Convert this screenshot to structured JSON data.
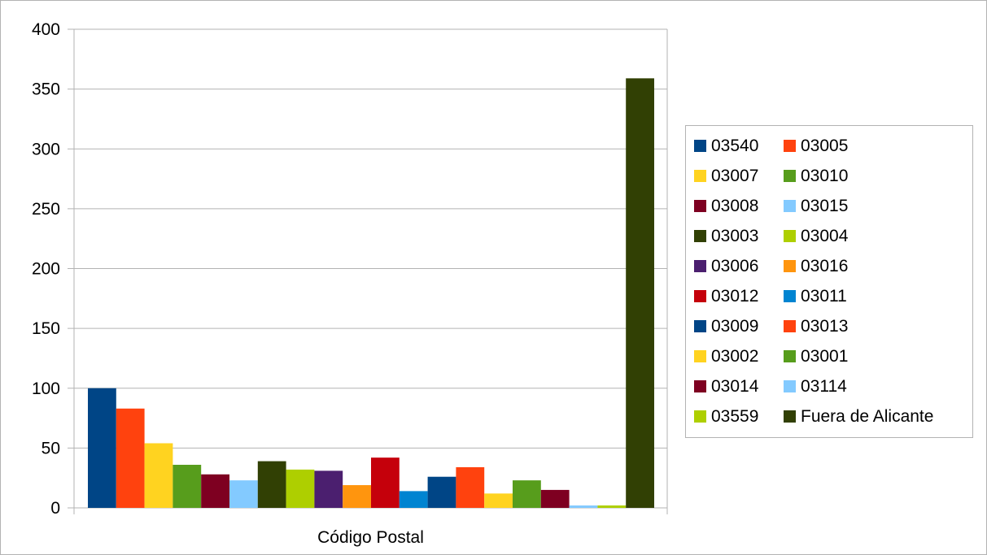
{
  "chart_data": {
    "type": "bar",
    "xlabel": "Código Postal",
    "ylabel": "",
    "ylim": [
      0,
      400
    ],
    "yticks": [
      "0",
      "50",
      "100",
      "150",
      "200",
      "250",
      "300",
      "350",
      "400"
    ],
    "grid": true,
    "legend_position": "right",
    "series": [
      {
        "name": "03540",
        "value": 100,
        "color": "#004586"
      },
      {
        "name": "03005",
        "value": 83,
        "color": "#ff420e"
      },
      {
        "name": "03007",
        "value": 54,
        "color": "#ffd320"
      },
      {
        "name": "03010",
        "value": 36,
        "color": "#579d1c"
      },
      {
        "name": "03008",
        "value": 28,
        "color": "#7e0021"
      },
      {
        "name": "03015",
        "value": 23,
        "color": "#83caff"
      },
      {
        "name": "03003",
        "value": 39,
        "color": "#314004"
      },
      {
        "name": "03004",
        "value": 32,
        "color": "#aecf00"
      },
      {
        "name": "03006",
        "value": 31,
        "color": "#4b1f6f"
      },
      {
        "name": "03016",
        "value": 19,
        "color": "#ff950e"
      },
      {
        "name": "03012",
        "value": 42,
        "color": "#c5000b"
      },
      {
        "name": "03011",
        "value": 14,
        "color": "#0084d1"
      },
      {
        "name": "03009",
        "value": 26,
        "color": "#004586"
      },
      {
        "name": "03013",
        "value": 34,
        "color": "#ff420e"
      },
      {
        "name": "03002",
        "value": 12,
        "color": "#ffd320"
      },
      {
        "name": "03001",
        "value": 23,
        "color": "#579d1c"
      },
      {
        "name": "03014",
        "value": 15,
        "color": "#7e0021"
      },
      {
        "name": "03114",
        "value": 2,
        "color": "#83caff"
      },
      {
        "name": "03559",
        "value": 2,
        "color": "#aecf00"
      },
      {
        "name": "Fuera de Alicante",
        "value": 359,
        "color": "#314004"
      }
    ]
  }
}
